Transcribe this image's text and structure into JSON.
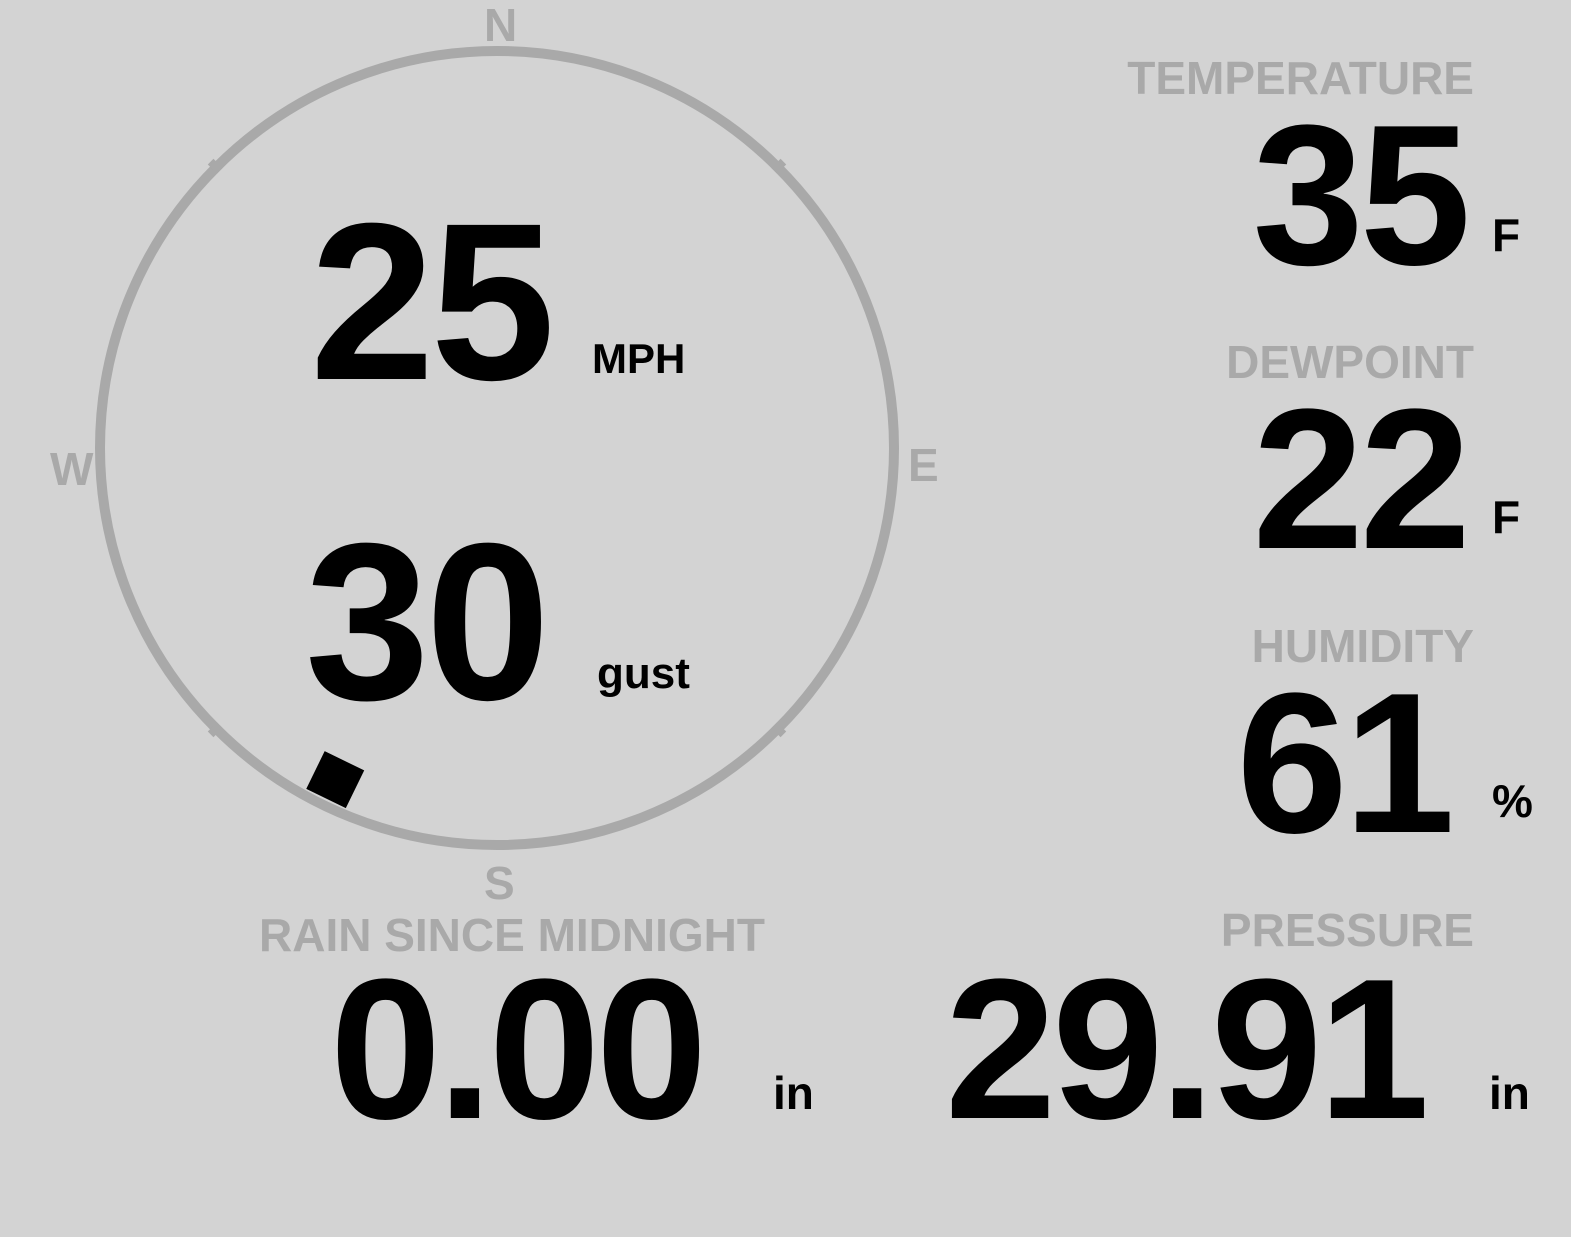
{
  "compass": {
    "north": "N",
    "south": "S",
    "east": "E",
    "west": "W",
    "wind_direction_deg": 206,
    "ring_color": "#a9a9a9"
  },
  "wind": {
    "speed": "25",
    "speed_unit": "MPH",
    "gust": "30",
    "gust_unit": "gust"
  },
  "temperature": {
    "label": "TEMPERATURE",
    "value": "35",
    "unit": "F"
  },
  "dewpoint": {
    "label": "DEWPOINT",
    "value": "22",
    "unit": "F"
  },
  "humidity": {
    "label": "HUMIDITY",
    "value": "61",
    "unit": "%"
  },
  "rain": {
    "label": "RAIN SINCE MIDNIGHT",
    "value": "0.00",
    "unit": "in"
  },
  "pressure": {
    "label": "PRESSURE",
    "value": "29.91",
    "unit": "in"
  },
  "colors": {
    "background": "#d3d3d3",
    "label": "#a9a9a9",
    "value": "#000000"
  }
}
